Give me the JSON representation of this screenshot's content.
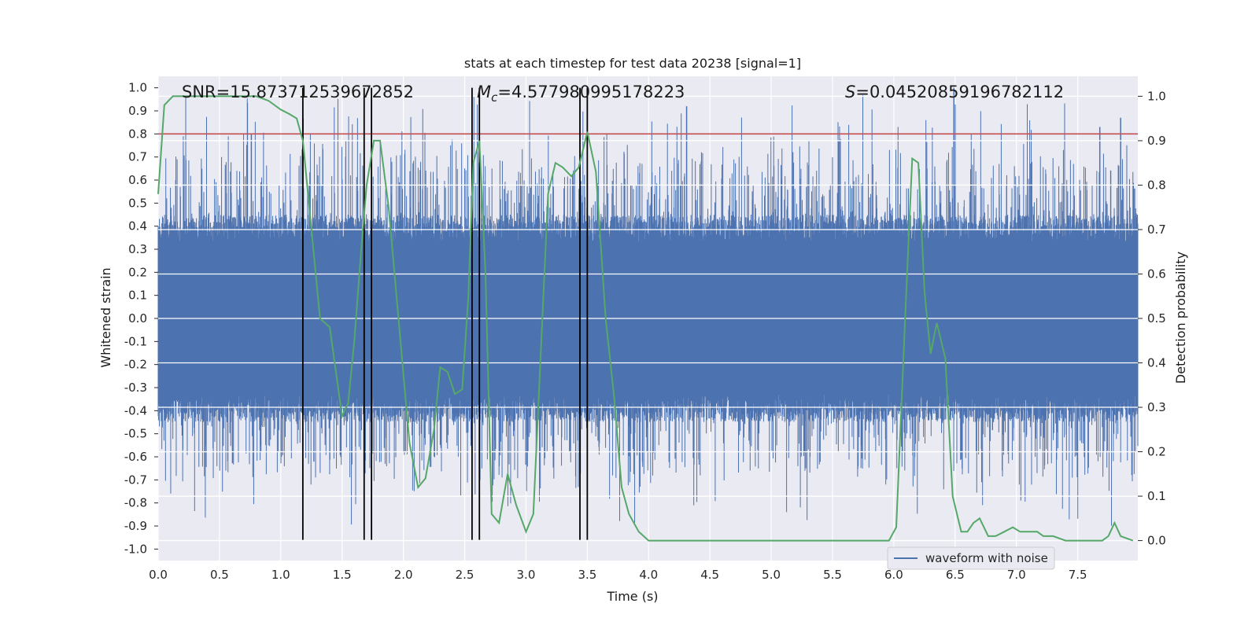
{
  "chart_data": {
    "type": "line",
    "title": "stats at each timestep for test data 20238 [signal=1]",
    "xlabel": "Time (s)",
    "ylabel": "Whitened strain",
    "y2label": "Detection probability",
    "xlim": [
      0,
      7.99
    ],
    "ylim": [
      -1.05,
      1.05
    ],
    "y2lim": [
      -0.045,
      1.045
    ],
    "xticks": [
      "0.0",
      "0.5",
      "1.0",
      "1.5",
      "2.0",
      "2.5",
      "3.0",
      "3.5",
      "4.0",
      "4.5",
      "5.0",
      "5.5",
      "6.0",
      "6.5",
      "7.0",
      "7.5"
    ],
    "yticks": [
      "1.0",
      "0.9",
      "0.8",
      "0.7",
      "0.6",
      "0.5",
      "0.4",
      "0.3",
      "0.2",
      "0.1",
      "0.0",
      "-0.1",
      "-0.2",
      "-0.3",
      "-0.4",
      "-0.5",
      "-0.6",
      "-0.7",
      "-0.8",
      "-0.9",
      "-1.0"
    ],
    "y2ticks": [
      "1.0",
      "0.9",
      "0.8",
      "0.7",
      "0.6",
      "0.5",
      "0.4",
      "0.3",
      "0.2",
      "0.1",
      "0.0"
    ],
    "annotations": {
      "snr": "SNR=15.873712539672852",
      "mc_symbol": "M",
      "mc_sub": "c",
      "mc_value": "=4.577980995178223",
      "s_symbol": "S",
      "s_value": "=0.04520859196782112"
    },
    "threshold": 0.8,
    "markers": [
      1.18,
      1.68,
      1.74,
      2.56,
      2.62,
      3.44,
      3.5
    ],
    "waveform": {
      "name": "waveform with noise",
      "color": "#4c72b0",
      "envelope_note": "dense noise, core amplitude about ±0.4, peaks up to about 1.0"
    },
    "probability": {
      "color": "#55a868",
      "t": [
        0.0,
        0.05,
        0.12,
        0.2,
        0.35,
        0.5,
        0.65,
        0.8,
        0.9,
        1.0,
        1.07,
        1.13,
        1.18,
        1.25,
        1.32,
        1.4,
        1.45,
        1.5,
        1.55,
        1.6,
        1.66,
        1.7,
        1.76,
        1.81,
        1.88,
        1.96,
        2.05,
        2.12,
        2.18,
        2.25,
        2.3,
        2.36,
        2.42,
        2.48,
        2.53,
        2.57,
        2.62,
        2.67,
        2.72,
        2.78,
        2.85,
        2.92,
        3.0,
        3.06,
        3.12,
        3.18,
        3.24,
        3.3,
        3.37,
        3.43,
        3.5,
        3.57,
        3.65,
        3.72,
        3.78,
        3.84,
        3.92,
        4.0,
        4.2,
        4.4,
        4.6,
        4.8,
        5.0,
        5.3,
        5.6,
        5.85,
        5.96,
        6.02,
        6.1,
        6.15,
        6.2,
        6.25,
        6.3,
        6.35,
        6.42,
        6.48,
        6.55,
        6.6,
        6.65,
        6.7,
        6.77,
        6.83,
        6.9,
        6.97,
        7.03,
        7.1,
        7.17,
        7.22,
        7.3,
        7.4,
        7.5,
        7.6,
        7.7,
        7.75,
        7.8,
        7.85,
        7.95
      ],
      "values": [
        0.78,
        0.98,
        1.0,
        1.0,
        1.0,
        1.0,
        1.0,
        1.0,
        0.99,
        0.97,
        0.96,
        0.95,
        0.9,
        0.7,
        0.5,
        0.48,
        0.38,
        0.28,
        0.31,
        0.45,
        0.67,
        0.8,
        0.9,
        0.9,
        0.75,
        0.5,
        0.22,
        0.12,
        0.14,
        0.25,
        0.39,
        0.38,
        0.33,
        0.34,
        0.55,
        0.85,
        0.9,
        0.6,
        0.06,
        0.04,
        0.15,
        0.08,
        0.02,
        0.06,
        0.42,
        0.78,
        0.85,
        0.84,
        0.82,
        0.84,
        0.92,
        0.83,
        0.5,
        0.32,
        0.12,
        0.06,
        0.02,
        0.0,
        0.0,
        0.0,
        0.0,
        0.0,
        0.0,
        0.0,
        0.0,
        0.0,
        0.0,
        0.03,
        0.55,
        0.86,
        0.85,
        0.56,
        0.42,
        0.49,
        0.41,
        0.1,
        0.02,
        0.02,
        0.04,
        0.05,
        0.01,
        0.01,
        0.02,
        0.03,
        0.02,
        0.02,
        0.02,
        0.01,
        0.01,
        0.0,
        0.0,
        0.0,
        0.0,
        0.01,
        0.04,
        0.01,
        0.0
      ]
    }
  }
}
